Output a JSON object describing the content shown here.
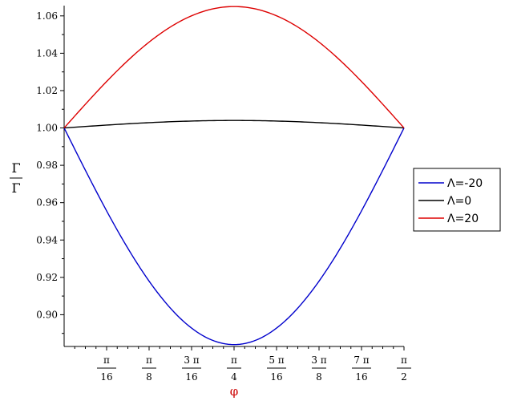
{
  "chart_data": {
    "type": "line",
    "xlabel": "φ",
    "ylabel_numerator": "Γ",
    "ylabel_denominator": "Γ",
    "xlim": [
      0,
      1.5707963
    ],
    "ylim": [
      0.883,
      1.0655
    ],
    "x_ticks": [
      {
        "value": 0.19634954,
        "num": "π",
        "den": "16"
      },
      {
        "value": 0.39269908,
        "num": "π",
        "den": "8"
      },
      {
        "value": 0.58904862,
        "num": "3 π",
        "den": "16"
      },
      {
        "value": 0.78539816,
        "num": "π",
        "den": "4"
      },
      {
        "value": 0.9817477,
        "num": "5 π",
        "den": "16"
      },
      {
        "value": 1.17809725,
        "num": "3 π",
        "den": "8"
      },
      {
        "value": 1.37444679,
        "num": "7 π",
        "den": "16"
      },
      {
        "value": 1.57079633,
        "num": "π",
        "den": "2"
      }
    ],
    "y_ticks": [
      {
        "value": 0.9,
        "label": "0.90"
      },
      {
        "value": 0.92,
        "label": "0.92"
      },
      {
        "value": 0.94,
        "label": "0.94"
      },
      {
        "value": 0.96,
        "label": "0.96"
      },
      {
        "value": 0.98,
        "label": "0.98"
      },
      {
        "value": 1.0,
        "label": "1.00"
      },
      {
        "value": 1.02,
        "label": "1.02"
      },
      {
        "value": 1.04,
        "label": "1.04"
      },
      {
        "value": 1.06,
        "label": "1.06"
      }
    ],
    "series": [
      {
        "name": "Λ=-20",
        "color": "#0000cc",
        "amplitude": -0.116
      },
      {
        "name": "Λ=0",
        "color": "#000000",
        "amplitude": 0.004
      },
      {
        "name": "Λ=20",
        "color": "#dd0000",
        "amplitude": 0.065
      }
    ],
    "legend_position": "right",
    "grid": false
  }
}
